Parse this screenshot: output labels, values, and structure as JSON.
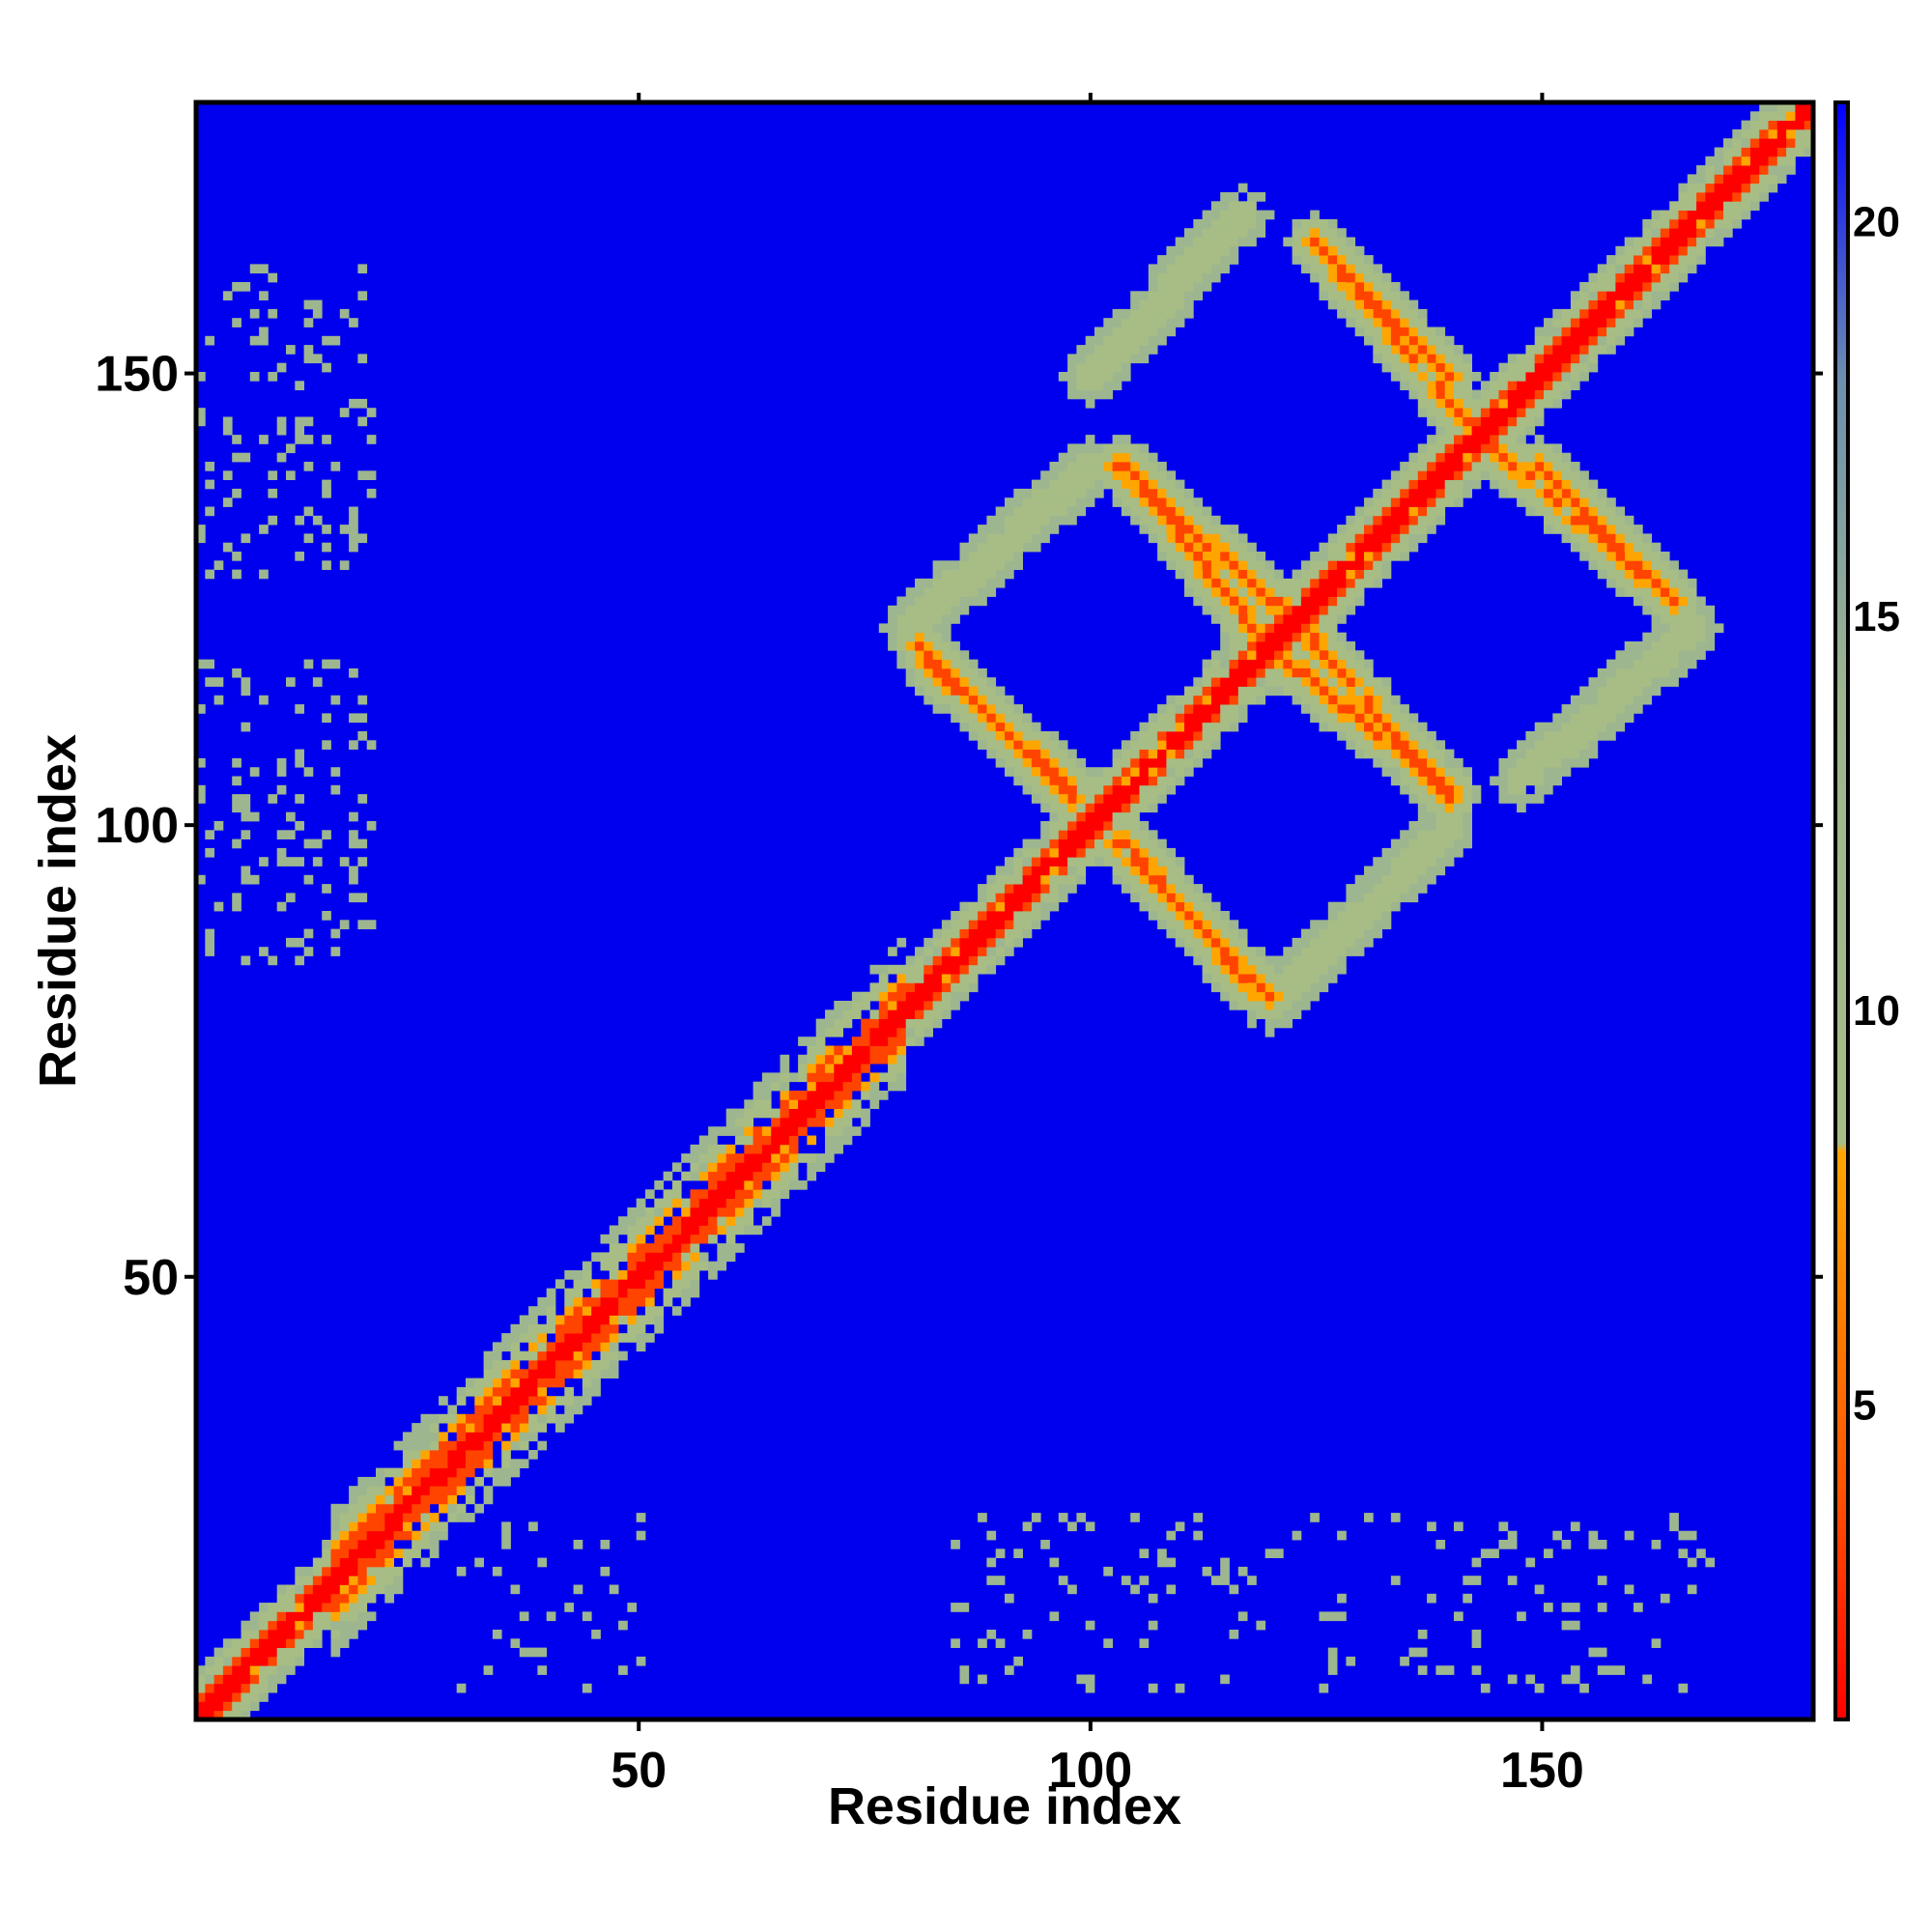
{
  "chart_data": {
    "type": "heatmap",
    "title": "",
    "xlabel": "Residue index",
    "ylabel": "Residue index",
    "xlim": [
      1,
      180
    ],
    "ylim": [
      1,
      180
    ],
    "x_ticks": [
      50,
      100,
      150
    ],
    "y_ticks": [
      50,
      100,
      150
    ],
    "colorbar": {
      "label": "",
      "range": [
        1,
        21.5
      ],
      "ticks": [
        5,
        10,
        15,
        20
      ],
      "stops": [
        {
          "value": 1,
          "color": "#ff0000"
        },
        {
          "value": 4,
          "color": "#ff5500"
        },
        {
          "value": 8.2,
          "color": "#ffa500"
        },
        {
          "value": 8.3,
          "color": "#a7bd85"
        },
        {
          "value": 14,
          "color": "#9db68f"
        },
        {
          "value": 18,
          "color": "#6b8fb0"
        },
        {
          "value": 21.5,
          "color": "#0000ff"
        }
      ]
    },
    "background_color": "#0000ee",
    "description_of_features": {
      "diagonal": "self contacts along i=j, red core width ~2, orange/green halo widening at residues 20-80",
      "antiparallel_contacts": [
        {
          "from": [
            82,
            118
          ],
          "to": [
            98,
            104
          ],
          "color": "orange"
        },
        {
          "from": [
            103,
            140
          ],
          "to": [
            124,
            122
          ],
          "color": "orange"
        },
        {
          "from": [
            103,
            98
          ],
          "to": [
            120,
            81
          ],
          "color": "orange"
        },
        {
          "from": [
            121,
            119
          ],
          "to": [
            140,
            104
          ],
          "color": "orange"
        },
        {
          "from": [
            125,
            165
          ],
          "to": [
            140,
            150
          ],
          "color": "orange"
        },
        {
          "from": [
            145,
            142
          ],
          "to": [
            165,
            125
          ],
          "color": "orange"
        }
      ],
      "parallel_contacts": [
        {
          "from": [
            80,
            122
          ],
          "to": [
            100,
            140
          ],
          "color": "green"
        },
        {
          "from": [
            100,
            150
          ],
          "to": [
            117,
            168
          ],
          "color": "green"
        },
        {
          "from": [
            120,
            80
          ],
          "to": [
            140,
            100
          ],
          "color": "green"
        },
        {
          "from": [
            148,
            105
          ],
          "to": [
            167,
            122
          ],
          "color": "green"
        }
      ],
      "sparse_patches": "scattered green noise near x=1-20 (y=85-160) and y=5-25 (x=30-170)"
    }
  }
}
